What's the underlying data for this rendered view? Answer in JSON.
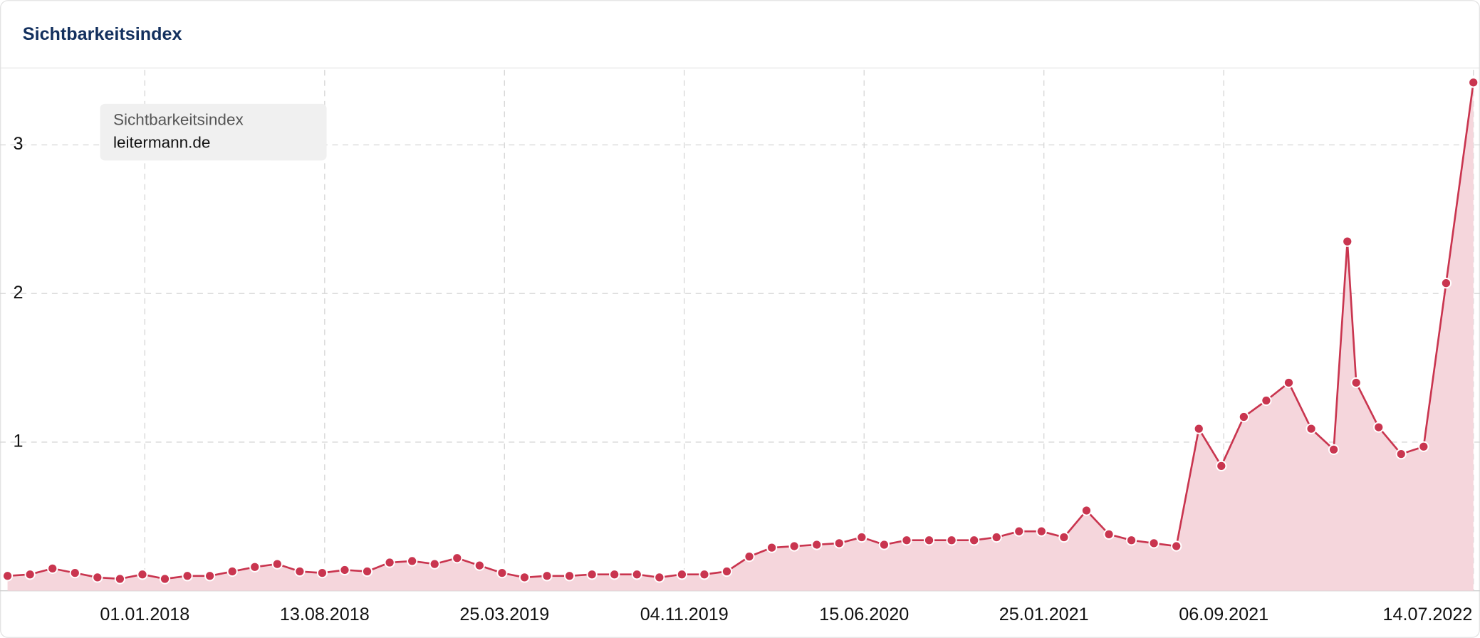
{
  "chart_data": {
    "type": "line",
    "title": "Sichtbarkeitsindex",
    "legend_title": "Sichtbarkeitsindex",
    "x": [
      "14.07.2017",
      "11.08.2017",
      "08.09.2017",
      "06.10.2017",
      "03.11.2017",
      "01.12.2017",
      "29.12.2017",
      "26.01.2018",
      "23.02.2018",
      "23.03.2018",
      "20.04.2018",
      "18.05.2018",
      "15.06.2018",
      "13.07.2018",
      "10.08.2018",
      "07.09.2018",
      "05.10.2018",
      "02.11.2018",
      "30.11.2018",
      "28.12.2018",
      "25.01.2019",
      "22.02.2019",
      "22.03.2019",
      "19.04.2019",
      "17.05.2019",
      "14.06.2019",
      "12.07.2019",
      "09.08.2019",
      "06.09.2019",
      "04.10.2019",
      "01.11.2019",
      "29.11.2019",
      "27.12.2019",
      "24.01.2020",
      "21.02.2020",
      "20.03.2020",
      "17.04.2020",
      "15.05.2020",
      "12.06.2020",
      "10.07.2020",
      "07.08.2020",
      "04.09.2020",
      "02.10.2020",
      "30.10.2020",
      "27.11.2020",
      "25.12.2020",
      "22.01.2021",
      "19.02.2021",
      "19.03.2021",
      "16.04.2021",
      "14.05.2021",
      "11.06.2021",
      "09.07.2021",
      "06.08.2021",
      "03.09.2021",
      "01.10.2021",
      "29.10.2021",
      "26.11.2021",
      "24.12.2021",
      "21.01.2022",
      "07.02.2022",
      "18.02.2022",
      "18.03.2022",
      "15.04.2022",
      "13.05.2022",
      "10.06.2022",
      "14.07.2022"
    ],
    "series": [
      {
        "name": "leitermann.de",
        "color": "#c9354f",
        "fill": "#f5d6dc",
        "values": [
          0.1,
          0.11,
          0.15,
          0.12,
          0.09,
          0.08,
          0.11,
          0.08,
          0.1,
          0.1,
          0.13,
          0.16,
          0.18,
          0.13,
          0.12,
          0.14,
          0.13,
          0.19,
          0.2,
          0.18,
          0.22,
          0.17,
          0.12,
          0.09,
          0.1,
          0.1,
          0.11,
          0.11,
          0.11,
          0.09,
          0.11,
          0.11,
          0.13,
          0.23,
          0.29,
          0.3,
          0.31,
          0.32,
          0.36,
          0.31,
          0.34,
          0.34,
          0.34,
          0.34,
          0.36,
          0.4,
          0.4,
          0.36,
          0.54,
          0.38,
          0.34,
          0.32,
          0.3,
          1.09,
          0.84,
          1.17,
          1.28,
          1.4,
          1.09,
          0.95,
          2.35,
          1.4,
          1.1,
          0.92,
          0.97,
          2.07,
          3.42
        ]
      }
    ],
    "xlim": [
      "14.07.2017",
      "14.07.2022"
    ],
    "xticks": [
      "01.01.2018",
      "13.08.2018",
      "25.03.2019",
      "04.11.2019",
      "15.06.2020",
      "25.01.2021",
      "06.09.2021",
      "14.07.2022"
    ],
    "ylim": [
      0,
      3.5
    ],
    "yticks": [
      1,
      2,
      3
    ],
    "grid": true
  }
}
